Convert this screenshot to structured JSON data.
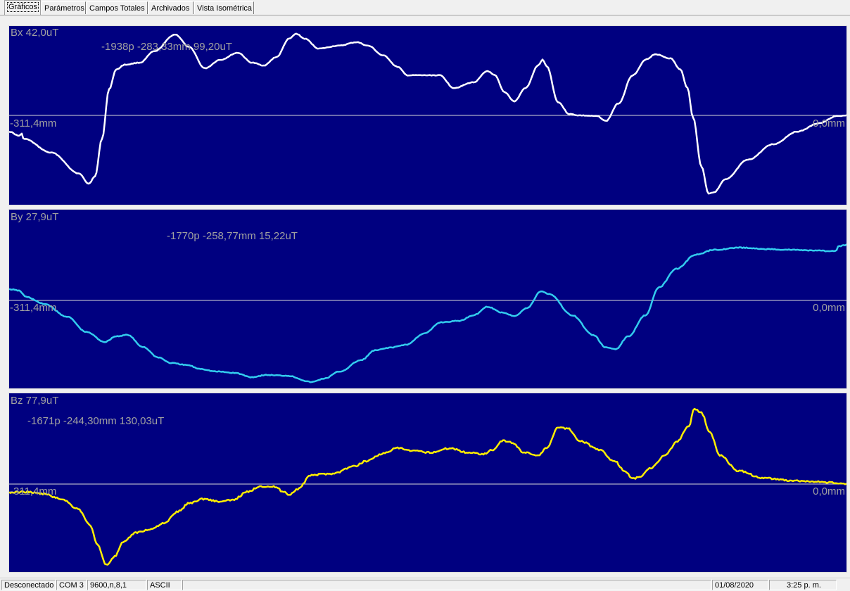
{
  "tabs": [
    {
      "label": "Gráficos",
      "active": true
    },
    {
      "label": "Parámetros",
      "active": false
    },
    {
      "label": "Campos Totales",
      "active": false
    },
    {
      "label": "Archivados",
      "active": false
    },
    {
      "label": "Vista Isométrica",
      "active": false
    }
  ],
  "panels": [
    {
      "name": "bx",
      "title": "Bx 42,0uT",
      "readout": "-1938p -283,33mm 99,20uT",
      "left_label": "-311,4mm",
      "right_label": "0,0mm",
      "color": "#ffffff"
    },
    {
      "name": "by",
      "title": "By 27,9uT",
      "readout": "-1770p -258,77mm 15,22uT",
      "left_label": "-311,4mm",
      "right_label": "0,0mm",
      "color": "#33ccee"
    },
    {
      "name": "bz",
      "title": "Bz 77,9uT",
      "readout": "-1671p -244,30mm 130,03uT",
      "left_label": "-311,4mm",
      "right_label": "0,0mm",
      "color": "#ffee00"
    }
  ],
  "status": {
    "connection": "Desconectado",
    "port": "COM 3",
    "settings": "9600,n,8,1",
    "mode": "ASCII",
    "date": "01/08/2020",
    "time": "3:25 p. m."
  }
}
